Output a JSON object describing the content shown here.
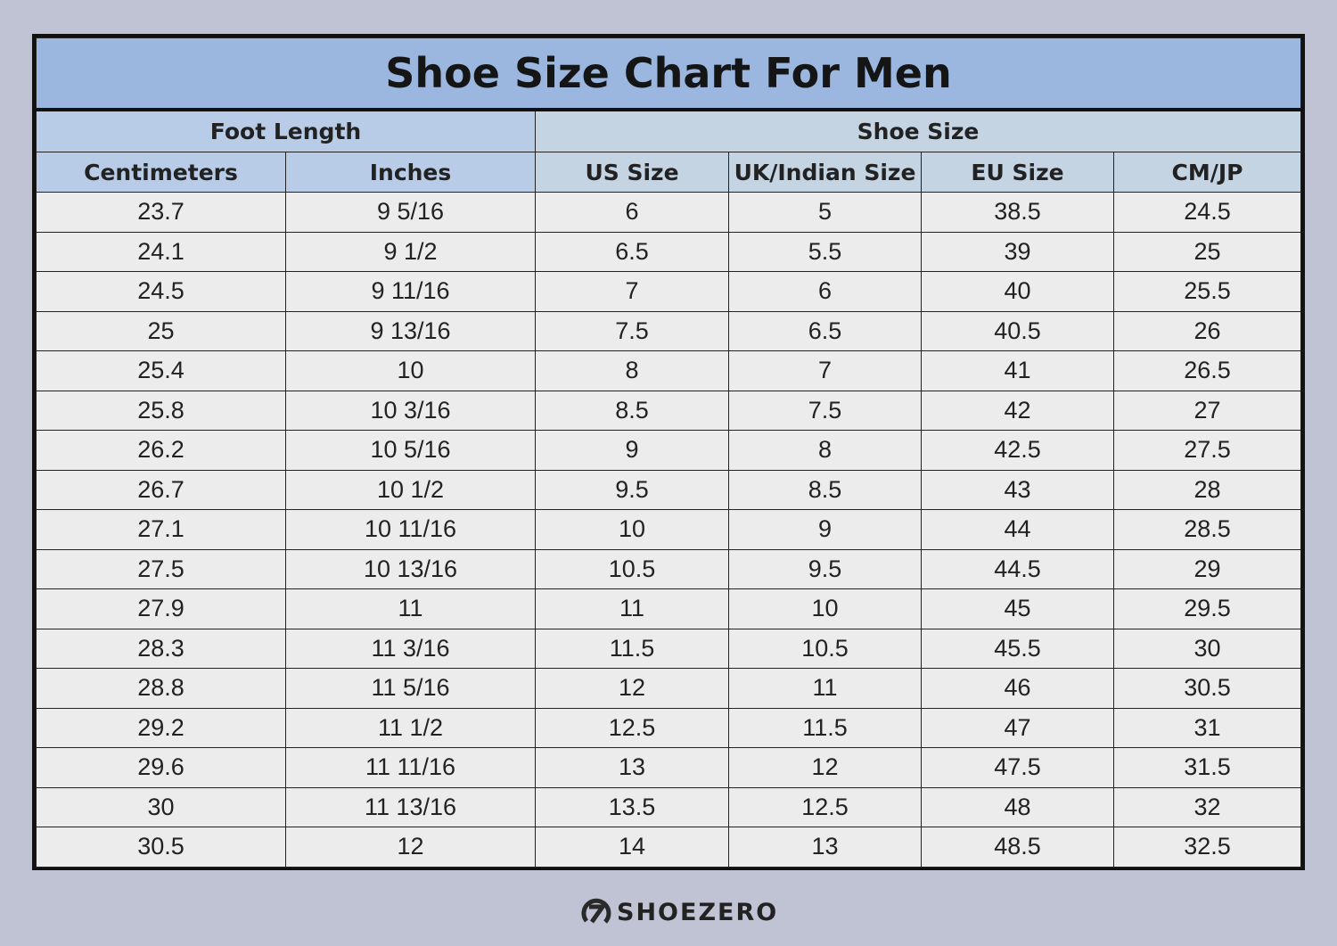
{
  "title": "Shoe Size Chart For Men",
  "groups": {
    "foot_length": "Foot Length",
    "shoe_size": "Shoe Size"
  },
  "columns": [
    "Centimeters",
    "Inches",
    "US Size",
    "UK/Indian Size",
    "EU Size",
    "CM/JP"
  ],
  "rows": [
    [
      "23.7",
      "9 5/16",
      "6",
      "5",
      "38.5",
      "24.5"
    ],
    [
      "24.1",
      "9 1/2",
      "6.5",
      "5.5",
      "39",
      "25"
    ],
    [
      "24.5",
      "9 11/16",
      "7",
      "6",
      "40",
      "25.5"
    ],
    [
      "25",
      "9 13/16",
      "7.5",
      "6.5",
      "40.5",
      "26"
    ],
    [
      "25.4",
      "10",
      "8",
      "7",
      "41",
      "26.5"
    ],
    [
      "25.8",
      "10 3/16",
      "8.5",
      "7.5",
      "42",
      "27"
    ],
    [
      "26.2",
      "10 5/16",
      "9",
      "8",
      "42.5",
      "27.5"
    ],
    [
      "26.7",
      "10 1/2",
      "9.5",
      "8.5",
      "43",
      "28"
    ],
    [
      "27.1",
      "10 11/16",
      "10",
      "9",
      "44",
      "28.5"
    ],
    [
      "27.5",
      "10 13/16",
      "10.5",
      "9.5",
      "44.5",
      "29"
    ],
    [
      "27.9",
      "11",
      "11",
      "10",
      "45",
      "29.5"
    ],
    [
      "28.3",
      "11 3/16",
      "11.5",
      "10.5",
      "45.5",
      "30"
    ],
    [
      "28.8",
      "11 5/16",
      "12",
      "11",
      "46",
      "30.5"
    ],
    [
      "29.2",
      "11 1/2",
      "12.5",
      "11.5",
      "47",
      "31"
    ],
    [
      "29.6",
      "11 11/16",
      "13",
      "12",
      "47.5",
      "31.5"
    ],
    [
      "30",
      "11 13/16",
      "13.5",
      "12.5",
      "48",
      "32"
    ],
    [
      "30.5",
      "12",
      "14",
      "13",
      "48.5",
      "32.5"
    ]
  ],
  "brand": {
    "name": "SHOEZERO",
    "icon": "shoezero-logo-icon"
  },
  "colors": {
    "title_bg": "#9bb7e0",
    "foot_length_bg": "#b8cbe7",
    "shoe_size_bg": "#c5d4e3",
    "row_bg": "#ececec",
    "page_bg": "#c0c3d3"
  }
}
